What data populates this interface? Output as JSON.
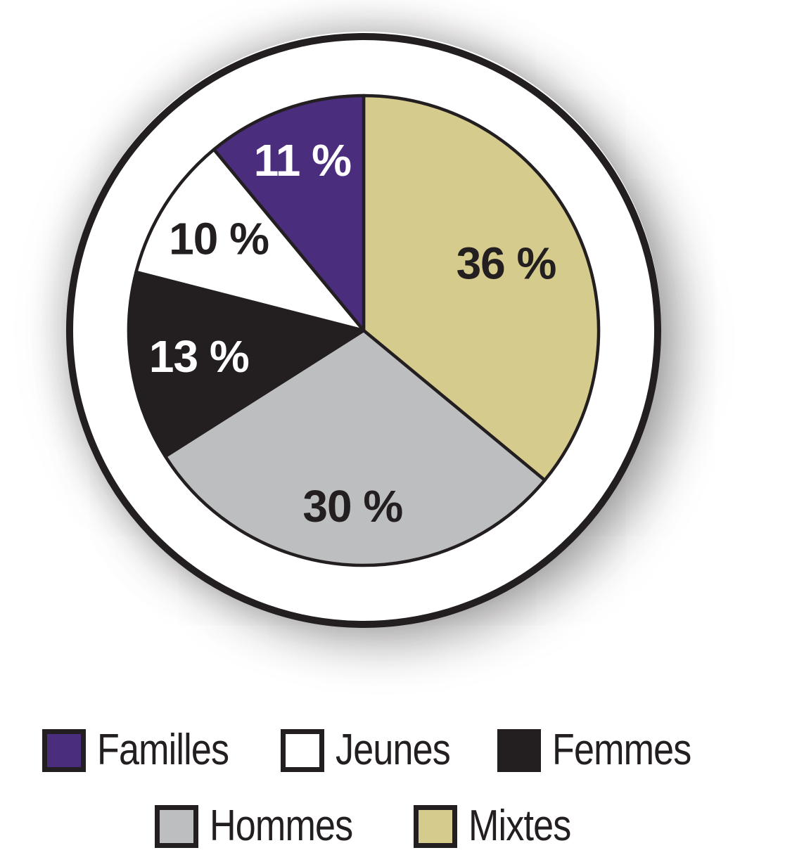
{
  "chart_data": {
    "type": "pie",
    "title": "",
    "start_angle_deg": 0,
    "direction": "clockwise",
    "outline_color": "#231f20",
    "slices": [
      {
        "label": "Mixtes",
        "value": 36,
        "display": "36 %",
        "color": "#d5cb8c",
        "text_color": "#231f20",
        "label_r": 0.67
      },
      {
        "label": "Hommes",
        "value": 30,
        "display": "30 %",
        "color": "#bcbec0",
        "text_color": "#231f20",
        "label_r": 0.75
      },
      {
        "label": "Femmes",
        "value": 13,
        "display": "13 %",
        "color": "#231f20",
        "text_color": "#ffffff",
        "label_r": 0.71
      },
      {
        "label": "Jeunes",
        "value": 10,
        "display": "10 %",
        "color": "#ffffff",
        "text_color": "#231f20",
        "label_r": 0.73
      },
      {
        "label": "Familles",
        "value": 11,
        "display": "11 %",
        "color": "#4b2d7e",
        "text_color": "#ffffff",
        "label_r": 0.77
      }
    ],
    "legend_position": "bottom"
  },
  "legend": {
    "items": [
      {
        "label": "Familles",
        "color": "#4b2d7e"
      },
      {
        "label": "Jeunes",
        "color": "#ffffff"
      },
      {
        "label": "Femmes",
        "color": "#231f20"
      },
      {
        "label": "Hommes",
        "color": "#bcbec0"
      },
      {
        "label": "Mixtes",
        "color": "#d5cb8c"
      }
    ]
  }
}
